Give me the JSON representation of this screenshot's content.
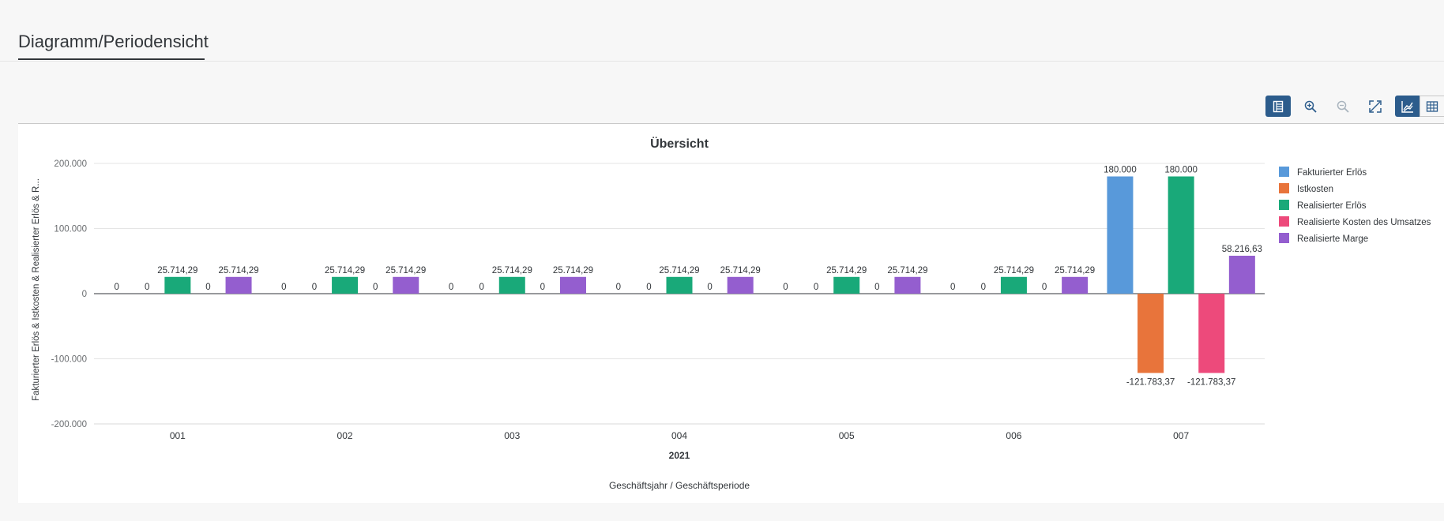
{
  "tab": {
    "title": "Diagramm/Periodensicht"
  },
  "toolbar": {
    "buttons": [
      {
        "name": "details-button",
        "icon": "table-details-icon",
        "active": true
      },
      {
        "name": "zoom-in-button",
        "icon": "zoom-in-icon",
        "active": false
      },
      {
        "name": "zoom-out-button",
        "icon": "zoom-out-icon",
        "active": false
      },
      {
        "name": "fullscreen-button",
        "icon": "fullscreen-icon",
        "active": false
      },
      {
        "name": "chart-view-button",
        "icon": "line-chart-icon",
        "active": true
      },
      {
        "name": "table-view-button",
        "icon": "table-grid-icon",
        "active": false
      }
    ]
  },
  "chart_data": {
    "type": "bar",
    "title": "Übersicht",
    "ylabel": "Fakturierter Erlös & Istkosten & Realisierter Erlös & R...",
    "xlabel": "Geschäftsjahr / Geschäftsperiode",
    "group_label": "2021",
    "ylim": [
      -200000,
      200000
    ],
    "yticks": [
      200000,
      100000,
      0,
      -100000,
      -200000
    ],
    "ytick_labels": [
      "200.000",
      "100.000",
      "0",
      "-100.000",
      "-200.000"
    ],
    "grid": true,
    "legend_position": "right",
    "categories": [
      "001",
      "002",
      "003",
      "004",
      "005",
      "006",
      "007"
    ],
    "series": [
      {
        "name": "Fakturierter Erlös",
        "color": "#5899da",
        "values": [
          0,
          0,
          0,
          0,
          0,
          0,
          180000
        ],
        "labels": [
          "0",
          "0",
          "0",
          "0",
          "0",
          "0",
          "180.000"
        ]
      },
      {
        "name": "Istkosten",
        "color": "#e8743b",
        "values": [
          0,
          0,
          0,
          0,
          0,
          0,
          -121783.37
        ],
        "labels": [
          "0",
          "0",
          "0",
          "0",
          "0",
          "0",
          "-121.783,37"
        ]
      },
      {
        "name": "Realisierter Erlös",
        "color": "#19a979",
        "values": [
          25714.29,
          25714.29,
          25714.29,
          25714.29,
          25714.29,
          25714.29,
          180000
        ],
        "labels": [
          "25.714,29",
          "25.714,29",
          "25.714,29",
          "25.714,29",
          "25.714,29",
          "25.714,29",
          "180.000"
        ]
      },
      {
        "name": "Realisierte Kosten des Umsatzes",
        "color": "#ed4a7b",
        "values": [
          0,
          0,
          0,
          0,
          0,
          0,
          -121783.37
        ],
        "labels": [
          "0",
          "0",
          "0",
          "0",
          "0",
          "0",
          "-121.783,37"
        ]
      },
      {
        "name": "Realisierte Marge",
        "color": "#945ecf",
        "values": [
          25714.29,
          25714.29,
          25714.29,
          25714.29,
          25714.29,
          25714.29,
          58216.63
        ],
        "labels": [
          "25.714,29",
          "25.714,29",
          "25.714,29",
          "25.714,29",
          "25.714,29",
          "25.714,29",
          "58.216,63"
        ]
      }
    ]
  }
}
